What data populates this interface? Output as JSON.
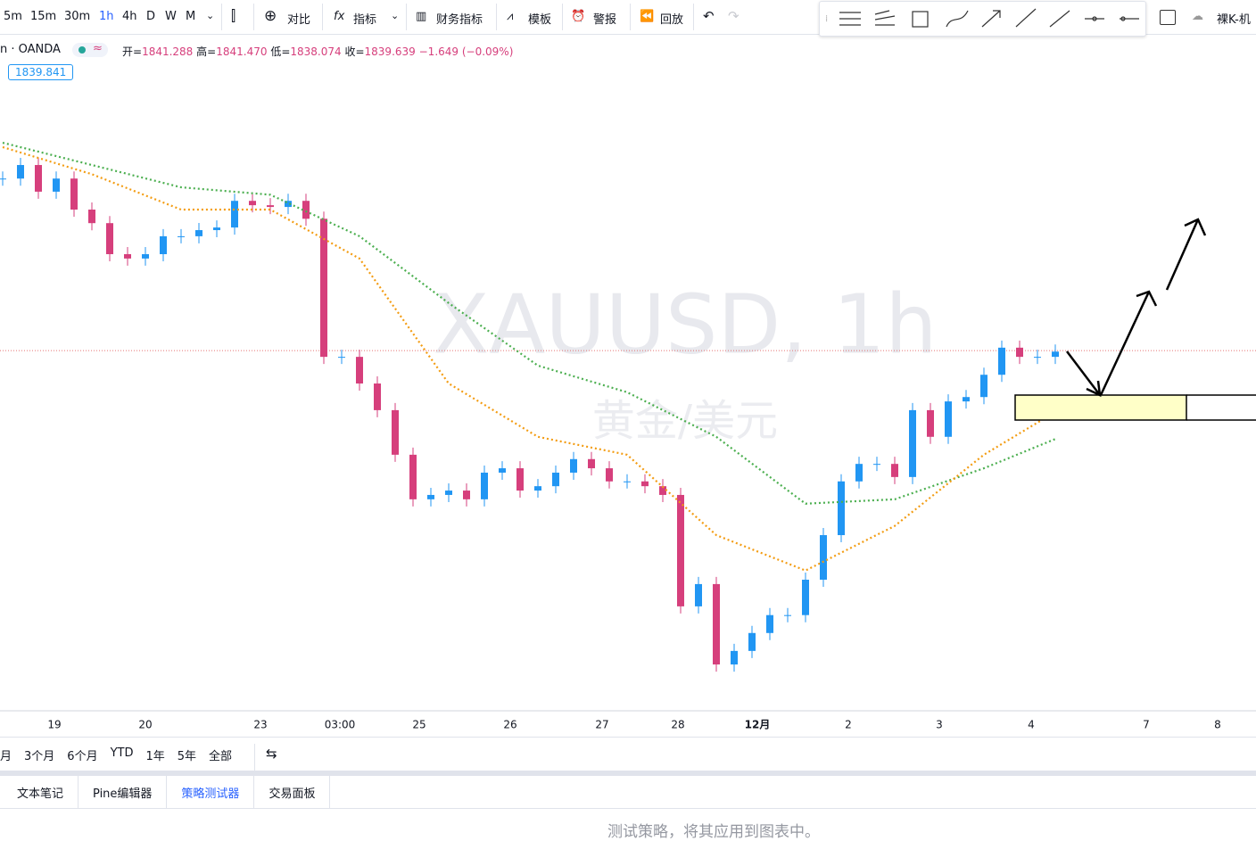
{
  "toolbar": {
    "intervals": [
      "5m",
      "15m",
      "30m",
      "1h",
      "4h",
      "D",
      "W",
      "M"
    ],
    "compare": "对比",
    "indicators": "指标",
    "financials": "财务指标",
    "templates": "模板",
    "alerts": "警报",
    "replay": "回放",
    "layout_name": "裸K-机"
  },
  "legend": {
    "source": "n · OANDA",
    "symbol_badge": "≈",
    "open_label": "开=",
    "open": "1841.288",
    "high_label": "高=",
    "high": "1841.470",
    "low_label": "低=",
    "low": "1838.074",
    "close_label": "收=",
    "close": "1839.639",
    "change": "−1.649 (−0.09%)"
  },
  "chart_data": {
    "type": "candlestick",
    "watermark": "XAUUSD, 1h",
    "watermark_sub": "黄金/美元",
    "last_price": 1839.841,
    "ylim": [
      1757.4,
      1911.9
    ],
    "closes": [
      1879.2,
      1882.3,
      1876.2,
      1879.2,
      1872.1,
      1869.0,
      1861.9,
      1860.9,
      1861.9,
      1866.0,
      1866.0,
      1867.4,
      1868.0,
      1874.1,
      1873.1,
      1872.7,
      1874.1,
      1870.0,
      1838.4,
      1838.4,
      1832.3,
      1826.2,
      1816.0,
      1805.8,
      1806.8,
      1807.8,
      1805.8,
      1811.9,
      1812.9,
      1807.8,
      1808.8,
      1811.9,
      1815.0,
      1812.9,
      1809.9,
      1809.9,
      1808.8,
      1806.8,
      1781.3,
      1786.4,
      1768.0,
      1771.1,
      1775.2,
      1779.3,
      1779.3,
      1787.4,
      1797.6,
      1809.9,
      1813.9,
      1813.9,
      1810.9,
      1826.2,
      1820.1,
      1828.2,
      1829.2,
      1834.3,
      1840.5,
      1838.4,
      1838.4,
      1839.6
    ],
    "series": [
      {
        "color": "#4caf50",
        "x": [
          0,
          5,
          10,
          15,
          20,
          25,
          30,
          35,
          40,
          45,
          50,
          55,
          59
        ],
        "values": [
          1887.4,
          1882.3,
          1877.2,
          1875.5,
          1866.0,
          1850.7,
          1836.4,
          1830.3,
          1820.1,
          1804.8,
          1805.8,
          1812.9,
          1819.6
        ]
      },
      {
        "color": "#f39c12",
        "x": [
          0,
          5,
          10,
          15,
          20,
          25,
          30,
          35,
          40,
          45,
          50,
          55,
          59
        ],
        "values": [
          1886.4,
          1880.2,
          1872.1,
          1872.1,
          1860.9,
          1832.3,
          1820.1,
          1816.0,
          1797.6,
          1789.5,
          1799.7,
          1816.0,
          1825.8
        ]
      }
    ],
    "x_labels": [
      "19",
      "20",
      "23",
      "03:00",
      "25",
      "26",
      "27",
      "28",
      "12月",
      "2",
      "3",
      "4",
      "7",
      "8"
    ]
  },
  "ranges": [
    "月",
    "3个月",
    "6个月",
    "YTD",
    "1年",
    "5年",
    "全部"
  ],
  "tabs": [
    "文本笔记",
    "Pine编辑器",
    "策略测试器",
    "交易面板"
  ],
  "message": "测试策略，将其应用到图表中。"
}
